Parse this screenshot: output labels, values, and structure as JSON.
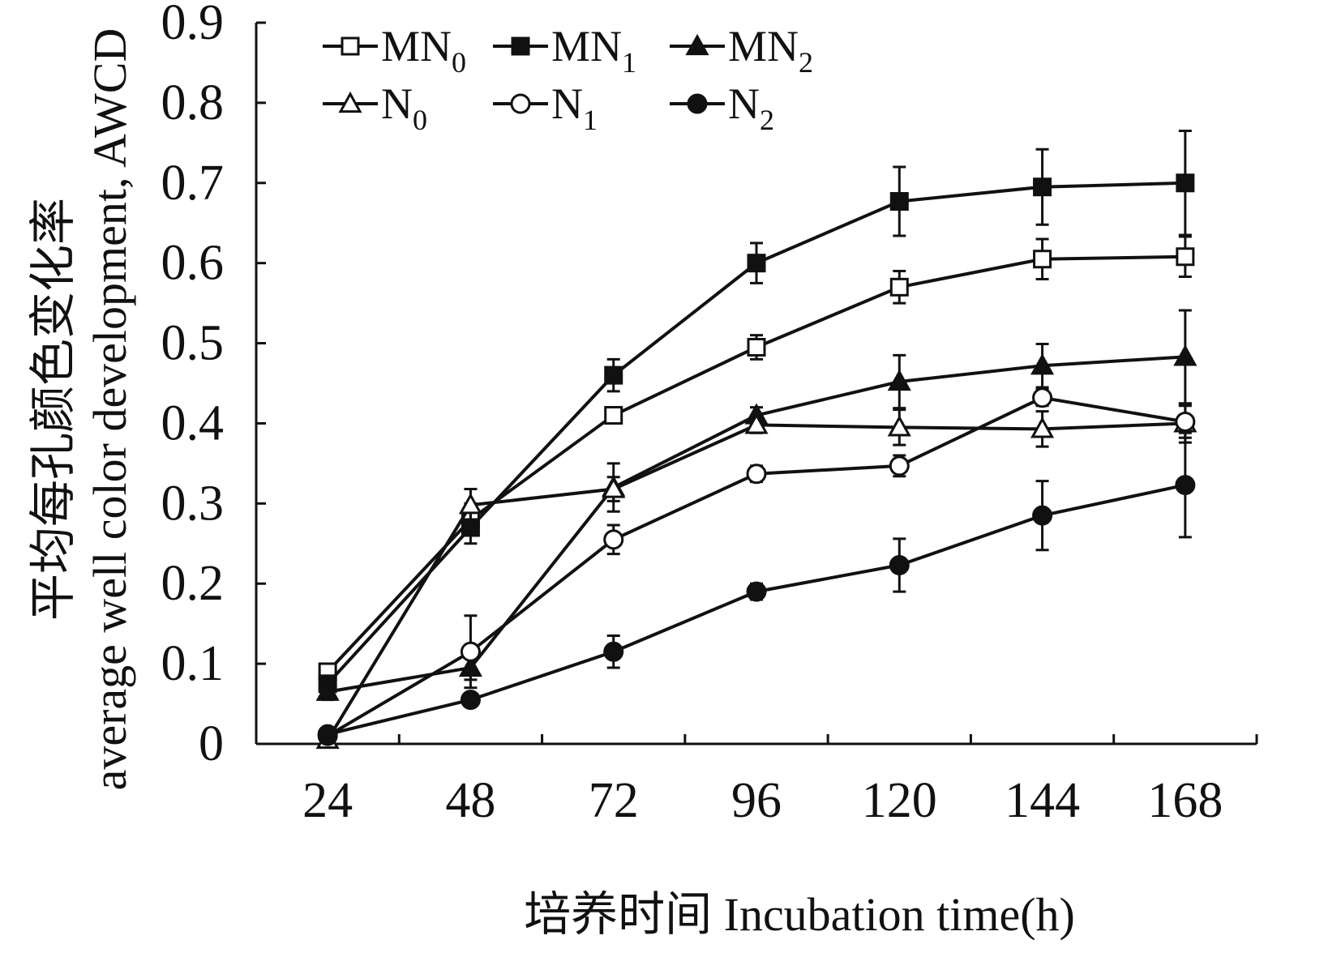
{
  "chart_data": {
    "type": "line",
    "title": "",
    "xlabel": "培养时间 Incubation time(h)",
    "ylabel_cn": "平均每孔颜色变化率",
    "ylabel_en": "average well color development, AWCD",
    "x": [
      24,
      48,
      72,
      96,
      120,
      144,
      168
    ],
    "x_tick_labels": [
      "24",
      "48",
      "72",
      "96",
      "120",
      "144",
      "168"
    ],
    "y_tick_labels": [
      "0",
      "0.1",
      "0.2",
      "0.3",
      "0.4",
      "0.5",
      "0.6",
      "0.7",
      "0.8",
      "0.9"
    ],
    "ylim": [
      0,
      0.9
    ],
    "grid": false,
    "legend_position": "top-left",
    "series": [
      {
        "name": "MN",
        "sub": "0",
        "marker": "square-open",
        "values": [
          0.09,
          0.28,
          0.41,
          0.495,
          0.57,
          0.605,
          0.608
        ],
        "errors": [
          0.01,
          0.02,
          0.01,
          0.015,
          0.02,
          0.025,
          0.025
        ]
      },
      {
        "name": "MN",
        "sub": "1",
        "marker": "square-filled",
        "values": [
          0.075,
          0.27,
          0.46,
          0.6,
          0.677,
          0.695,
          0.7
        ],
        "errors": [
          0.01,
          0.02,
          0.02,
          0.025,
          0.043,
          0.047,
          0.065
        ]
      },
      {
        "name": "MN",
        "sub": "2",
        "marker": "triangle-filled",
        "values": [
          0.065,
          0.095,
          0.32,
          0.41,
          0.452,
          0.472,
          0.483
        ],
        "errors": [
          0.01,
          0.015,
          0.03,
          0.01,
          0.033,
          0.027,
          0.058
        ]
      },
      {
        "name": "N",
        "sub": "0",
        "marker": "triangle-open",
        "values": [
          0.005,
          0.298,
          0.318,
          0.398,
          0.395,
          0.393,
          0.4
        ],
        "errors": [
          0.005,
          0.02,
          0.015,
          0.01,
          0.022,
          0.022,
          0.024
        ]
      },
      {
        "name": "N",
        "sub": "1",
        "marker": "circle-open",
        "values": [
          0.01,
          0.115,
          0.255,
          0.337,
          0.347,
          0.432,
          0.402
        ],
        "errors": [
          0.005,
          0.045,
          0.018,
          0.01,
          0.013,
          0.01,
          0.02
        ]
      },
      {
        "name": "N",
        "sub": "2",
        "marker": "circle-filled",
        "values": [
          0.012,
          0.055,
          0.115,
          0.19,
          0.223,
          0.285,
          0.323
        ],
        "errors": [
          0.005,
          0.005,
          0.02,
          0.01,
          0.033,
          0.043,
          0.065
        ]
      }
    ],
    "colors": {
      "line": "#111111",
      "fill": "#111111",
      "open_fill": "#ffffff",
      "background": "#ffffff"
    }
  }
}
